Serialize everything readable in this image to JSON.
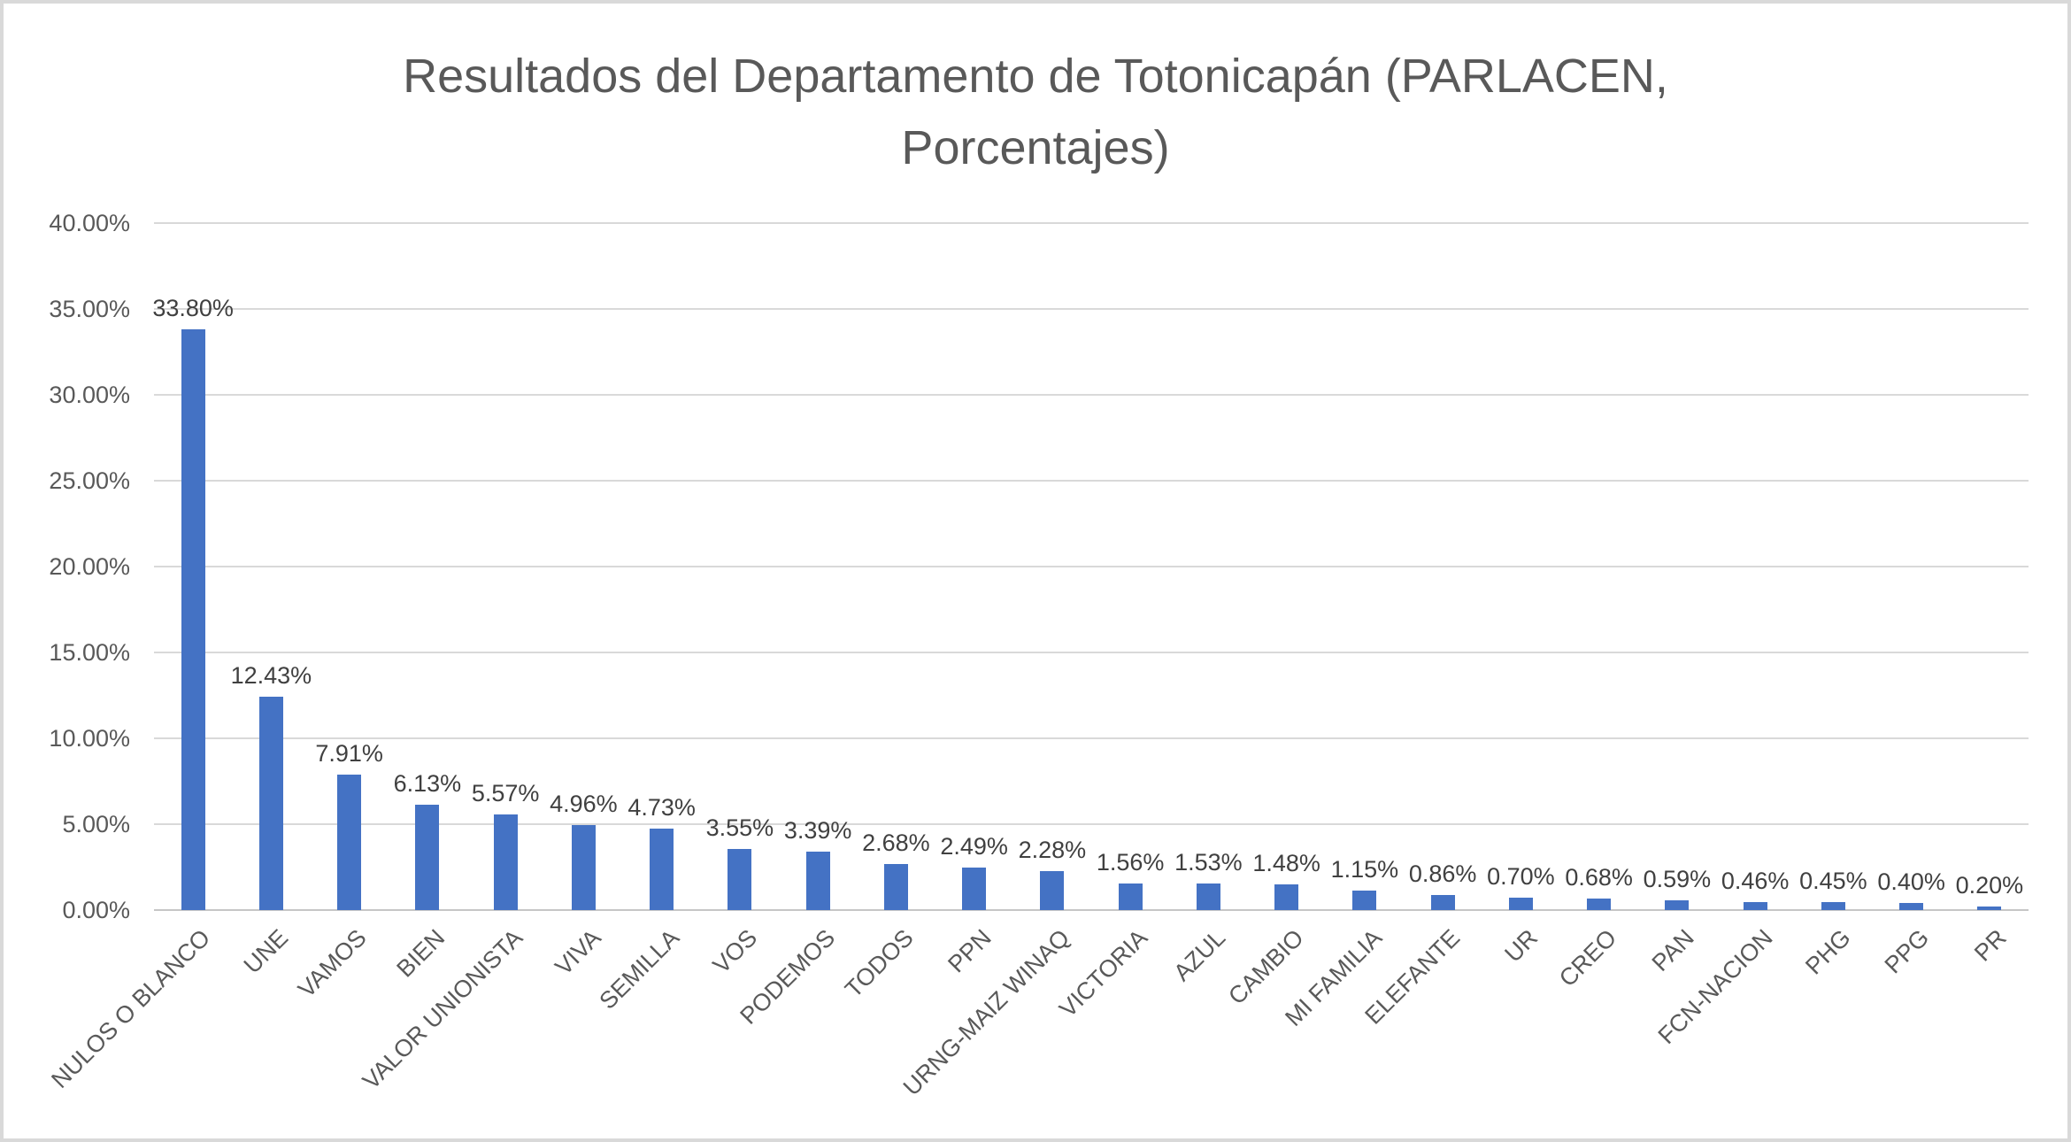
{
  "chart_data": {
    "type": "bar",
    "title": "Resultados del Departamento de Totonicapán (PARLACEN, Porcentajes)",
    "title_lines": [
      "Resultados del Departamento de Totonicapán (PARLACEN,",
      "Porcentajes)"
    ],
    "categories": [
      "NULOS O BLANCO",
      "UNE",
      "VAMOS",
      "BIEN",
      "VALOR UNIONISTA",
      "VIVA",
      "SEMILLA",
      "VOS",
      "PODEMOS",
      "TODOS",
      "PPN",
      "URNG-MAIZ WINAQ",
      "VICTORIA",
      "AZUL",
      "CAMBIO",
      "MI FAMILIA",
      "ELEFANTE",
      "UR",
      "CREO",
      "PAN",
      "FCN-NACION",
      "PHG",
      "PPG",
      "PR"
    ],
    "values": [
      33.8,
      12.43,
      7.91,
      6.13,
      5.57,
      4.96,
      4.73,
      3.55,
      3.39,
      2.68,
      2.49,
      2.28,
      1.56,
      1.53,
      1.48,
      1.15,
      0.86,
      0.7,
      0.68,
      0.59,
      0.46,
      0.45,
      0.4,
      0.2
    ],
    "data_labels": [
      "33.80%",
      "12.43%",
      "7.91%",
      "6.13%",
      "5.57%",
      "4.96%",
      "4.73%",
      "3.55%",
      "3.39%",
      "2.68%",
      "2.49%",
      "2.28%",
      "1.56%",
      "1.53%",
      "1.48%",
      "1.15%",
      "0.86%",
      "0.70%",
      "0.68%",
      "0.59%",
      "0.46%",
      "0.45%",
      "0.40%",
      "0.20%"
    ],
    "y_ticks": [
      "40.00%",
      "35.00%",
      "30.00%",
      "25.00%",
      "20.00%",
      "15.00%",
      "10.00%",
      "5.00%",
      "0.00%"
    ],
    "ylim": [
      0,
      40
    ],
    "y_tick_step": 5,
    "xlabel": "",
    "ylabel": "",
    "grid": true,
    "legend": false,
    "x_label_rotation_deg": 45,
    "colors": {
      "bar": "#4472C4",
      "gridline": "#D9D9D9",
      "axis_line": "#C6C6C6",
      "title": "#595959",
      "axis_labels": "#595959",
      "data_labels": "#404040",
      "frame_border": "#D9D9D9",
      "background": "#FFFFFF"
    }
  }
}
